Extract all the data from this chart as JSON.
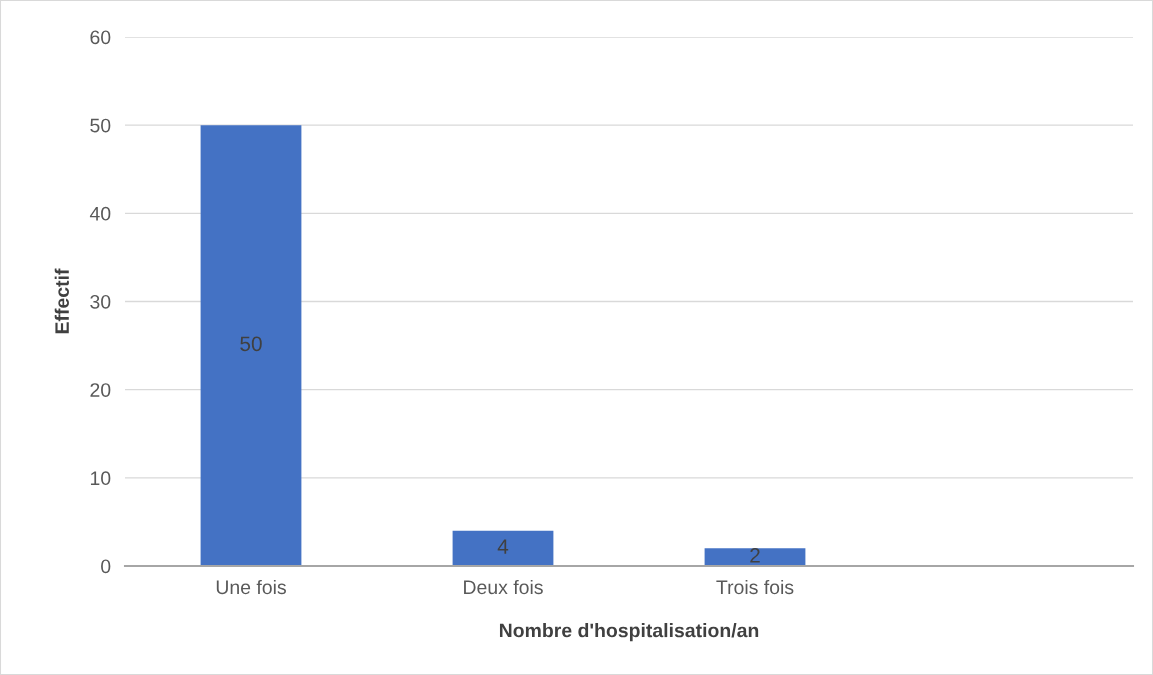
{
  "chart_data": {
    "type": "bar",
    "xlabel": "Nombre d'hospitalisation/an",
    "ylabel": "Effectif",
    "categories": [
      "Une fois",
      "Deux fois",
      "Trois fois",
      null
    ],
    "values": [
      50,
      4,
      2,
      null
    ],
    "color": "#4472c4",
    "ylim": [
      0,
      60
    ],
    "yticks": [
      0,
      10,
      20,
      30,
      40,
      50,
      60
    ],
    "grid": "y",
    "data_labels": true,
    "legend": false
  }
}
